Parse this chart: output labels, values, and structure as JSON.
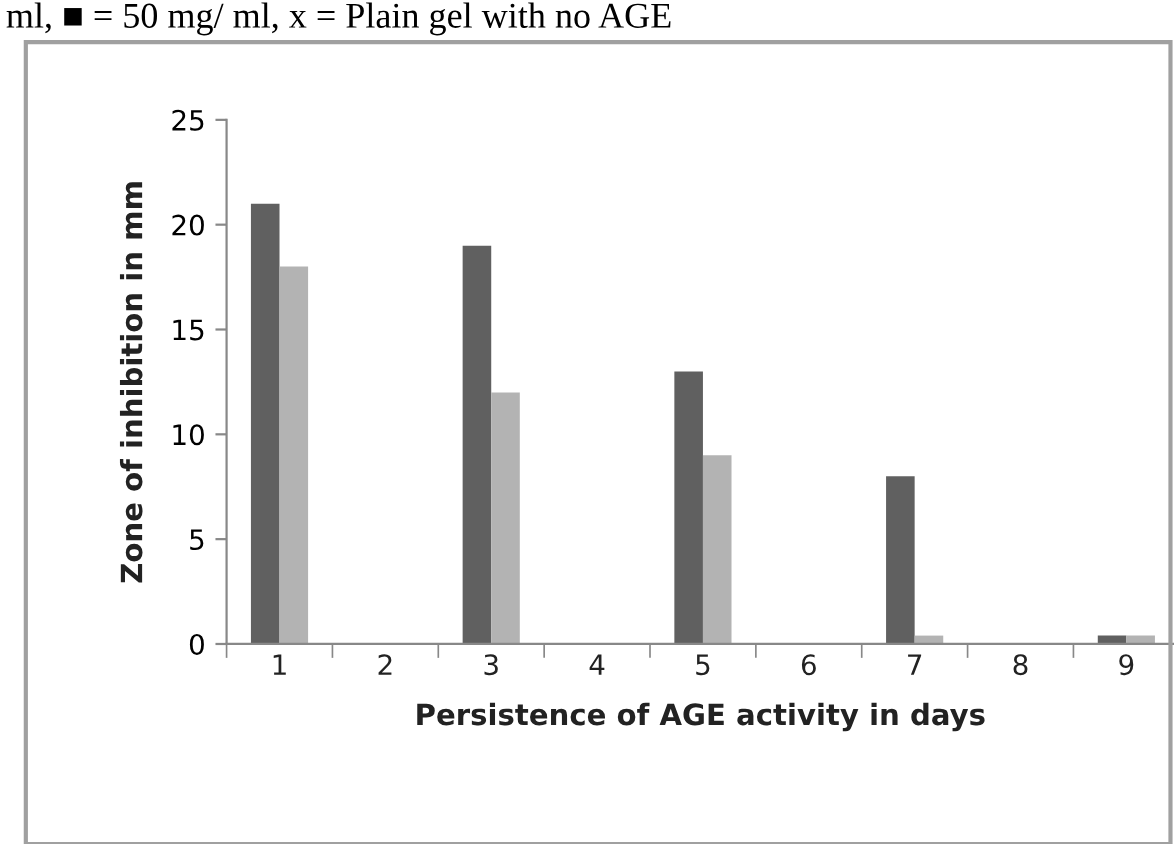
{
  "chart_data": {
    "type": "bar",
    "annotations": [
      "ml, ■ = 50 mg/ ml, x = Plain gel with no AGE"
    ],
    "xlabel": "Persistence of AGE activity in days",
    "ylabel": "Zone of inhibition in mm",
    "categories": [
      "1",
      "2",
      "3",
      "4",
      "5",
      "6",
      "7",
      "8",
      "9"
    ],
    "series": [
      {
        "color": "#606060",
        "values": [
          21,
          0,
          19,
          0,
          13,
          0,
          8,
          0,
          0.4
        ]
      },
      {
        "color": "#b3b3b3",
        "values": [
          18,
          0,
          12,
          0,
          9,
          0,
          0.4,
          0,
          0.4
        ]
      }
    ],
    "ylim": [
      0,
      25
    ],
    "yticks": [
      0,
      5,
      10,
      15,
      20,
      25
    ],
    "grid": false,
    "legend": false
  }
}
